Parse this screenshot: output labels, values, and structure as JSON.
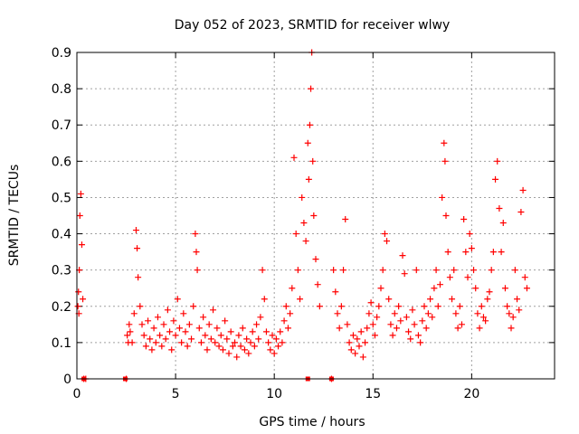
{
  "chart_data": {
    "type": "scatter",
    "title": "Day 052 of 2023, SRMTID for receiver wlwy",
    "xlabel": "GPS time / hours",
    "ylabel": "SRMTID / TECUs",
    "xlim": [
      0,
      24.2
    ],
    "ylim": [
      0,
      0.9
    ],
    "xticks": [
      0,
      5,
      10,
      15,
      20
    ],
    "yticks": [
      0,
      0.1,
      0.2,
      0.3,
      0.4,
      0.5,
      0.6,
      0.7,
      0.8,
      0.9
    ],
    "grid": true,
    "marker": "+",
    "color": "#ff0000",
    "series": [
      {
        "name": "SRMTID",
        "x": [
          0.05,
          0.08,
          0.1,
          0.12,
          0.15,
          0.2,
          0.25,
          0.3,
          0.35,
          0.45,
          2.5,
          2.55,
          2.6,
          2.65,
          2.7,
          2.8,
          2.9,
          3.0,
          3.05,
          3.1,
          3.2,
          3.3,
          3.4,
          3.5,
          3.6,
          3.7,
          3.8,
          3.9,
          4.0,
          4.1,
          4.2,
          4.3,
          4.4,
          4.5,
          4.6,
          4.7,
          4.8,
          4.9,
          5.0,
          5.1,
          5.2,
          5.3,
          5.4,
          5.5,
          5.6,
          5.7,
          5.8,
          5.9,
          6.0,
          6.05,
          6.1,
          6.2,
          6.3,
          6.4,
          6.5,
          6.6,
          6.7,
          6.8,
          6.9,
          7.0,
          7.1,
          7.2,
          7.3,
          7.4,
          7.5,
          7.6,
          7.7,
          7.8,
          7.9,
          8.0,
          8.1,
          8.2,
          8.3,
          8.4,
          8.5,
          8.6,
          8.7,
          8.8,
          8.9,
          9.0,
          9.1,
          9.2,
          9.3,
          9.4,
          9.5,
          9.6,
          9.7,
          9.8,
          9.9,
          10.0,
          10.1,
          10.2,
          10.3,
          10.4,
          10.5,
          10.6,
          10.7,
          10.8,
          10.9,
          11.0,
          11.1,
          11.2,
          11.3,
          11.4,
          11.5,
          11.6,
          11.7,
          11.75,
          11.8,
          11.85,
          11.9,
          11.95,
          12.0,
          12.1,
          12.2,
          12.3,
          12.9,
          13.0,
          13.1,
          13.2,
          13.3,
          13.4,
          13.5,
          13.6,
          13.7,
          13.8,
          13.9,
          14.0,
          14.1,
          14.2,
          14.3,
          14.4,
          14.5,
          14.6,
          14.7,
          14.8,
          14.9,
          15.0,
          15.1,
          15.2,
          15.3,
          15.4,
          15.5,
          15.6,
          15.7,
          15.8,
          15.9,
          16.0,
          16.1,
          16.2,
          16.3,
          16.4,
          16.5,
          16.6,
          16.7,
          16.8,
          16.9,
          17.0,
          17.1,
          17.2,
          17.3,
          17.4,
          17.5,
          17.6,
          17.7,
          17.8,
          17.9,
          18.0,
          18.1,
          18.2,
          18.3,
          18.4,
          18.5,
          18.6,
          18.65,
          18.7,
          18.8,
          18.9,
          19.0,
          19.1,
          19.2,
          19.3,
          19.4,
          19.5,
          19.6,
          19.7,
          19.8,
          19.9,
          20.0,
          20.1,
          20.2,
          20.3,
          20.4,
          20.5,
          20.6,
          20.7,
          20.8,
          20.9,
          21.0,
          21.1,
          21.2,
          21.3,
          21.4,
          21.5,
          21.6,
          21.7,
          21.8,
          21.9,
          22.0,
          22.1,
          22.2,
          22.3,
          22.4,
          22.5,
          22.6,
          22.7,
          22.8
        ],
        "y": [
          0.2,
          0.24,
          0.18,
          0.3,
          0.45,
          0.51,
          0.37,
          0.22,
          0.0,
          0.0,
          0.0,
          0.12,
          0.1,
          0.15,
          0.13,
          0.1,
          0.18,
          0.41,
          0.36,
          0.28,
          0.2,
          0.15,
          0.12,
          0.09,
          0.16,
          0.11,
          0.08,
          0.14,
          0.1,
          0.17,
          0.12,
          0.09,
          0.15,
          0.11,
          0.19,
          0.13,
          0.08,
          0.16,
          0.12,
          0.22,
          0.14,
          0.1,
          0.18,
          0.13,
          0.09,
          0.15,
          0.11,
          0.2,
          0.4,
          0.35,
          0.3,
          0.14,
          0.1,
          0.17,
          0.12,
          0.08,
          0.15,
          0.11,
          0.19,
          0.1,
          0.14,
          0.09,
          0.12,
          0.08,
          0.16,
          0.11,
          0.07,
          0.13,
          0.09,
          0.1,
          0.06,
          0.12,
          0.09,
          0.14,
          0.08,
          0.11,
          0.07,
          0.1,
          0.13,
          0.09,
          0.15,
          0.11,
          0.17,
          0.3,
          0.22,
          0.13,
          0.1,
          0.08,
          0.12,
          0.07,
          0.11,
          0.09,
          0.13,
          0.1,
          0.16,
          0.2,
          0.14,
          0.18,
          0.25,
          0.61,
          0.4,
          0.3,
          0.22,
          0.5,
          0.43,
          0.38,
          0.65,
          0.55,
          0.7,
          0.8,
          0.9,
          0.6,
          0.45,
          0.33,
          0.26,
          0.2,
          0.0,
          0.3,
          0.24,
          0.18,
          0.14,
          0.2,
          0.3,
          0.44,
          0.15,
          0.1,
          0.08,
          0.12,
          0.07,
          0.11,
          0.09,
          0.13,
          0.06,
          0.1,
          0.14,
          0.18,
          0.21,
          0.15,
          0.12,
          0.17,
          0.2,
          0.25,
          0.3,
          0.4,
          0.38,
          0.22,
          0.15,
          0.12,
          0.18,
          0.14,
          0.2,
          0.16,
          0.34,
          0.29,
          0.17,
          0.13,
          0.11,
          0.19,
          0.15,
          0.3,
          0.12,
          0.1,
          0.16,
          0.2,
          0.14,
          0.18,
          0.22,
          0.17,
          0.25,
          0.3,
          0.2,
          0.26,
          0.5,
          0.65,
          0.6,
          0.45,
          0.35,
          0.28,
          0.22,
          0.3,
          0.18,
          0.14,
          0.2,
          0.15,
          0.44,
          0.35,
          0.28,
          0.4,
          0.36,
          0.3,
          0.25,
          0.18,
          0.14,
          0.2,
          0.17,
          0.16,
          0.22,
          0.24,
          0.3,
          0.35,
          0.55,
          0.6,
          0.47,
          0.35,
          0.43,
          0.25,
          0.2,
          0.18,
          0.14,
          0.17,
          0.3,
          0.22,
          0.19,
          0.46,
          0.52,
          0.28,
          0.25
        ]
      }
    ],
    "zero_markers_x": [
      0.35,
      2.45,
      11.7,
      12.9
    ]
  }
}
